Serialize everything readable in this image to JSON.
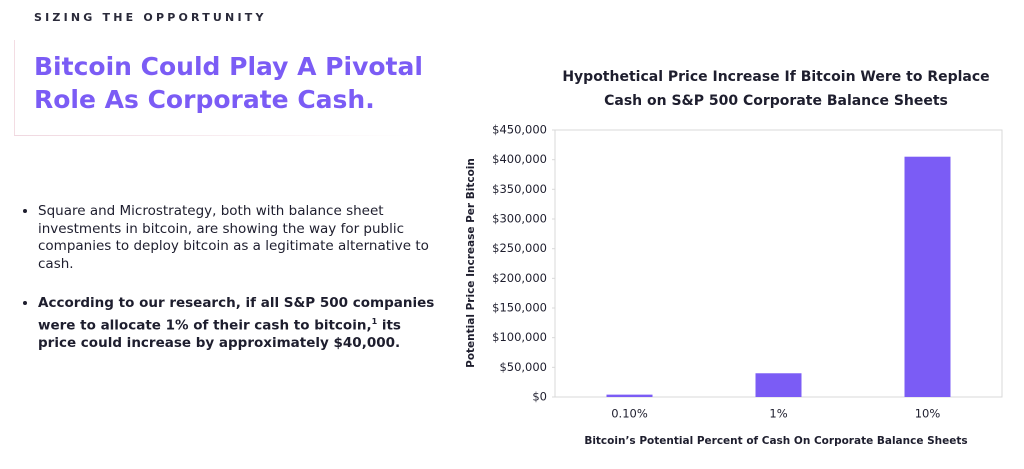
{
  "header": {
    "eyebrow": "SIZING THE OPPORTUNITY",
    "title_lines": [
      "Bitcoin Could Play A Pivotal",
      "Role As Corporate Cash."
    ]
  },
  "bullets": [
    {
      "text": "Square and Microstrategy, both with balance sheet investments in bitcoin, are showing the way for public companies to deploy bitcoin as a legitimate alternative to cash."
    },
    {
      "text": "According to our research, if all S&P 500 companies were to allocate 1% of their cash to bitcoin,",
      "footnote": "1",
      "text_after": " its price could increase by approximately $40,000."
    }
  ],
  "chart_data": {
    "type": "bar",
    "title": [
      "Hypothetical Price Increase If Bitcoin Were to Replace",
      "Cash on S&P 500 Corporate Balance Sheets"
    ],
    "x_label": "Bitcoin’s Potential Percent of Cash On Corporate Balance Sheets",
    "y_label": "Potential Price Increase Per Bitcoin",
    "categories": [
      "0.10%",
      "1%",
      "10%"
    ],
    "values": [
      4000,
      40000,
      405000
    ],
    "color": "#7b5cf5",
    "ylim": [
      0,
      450000
    ],
    "yticks": [
      {
        "value": 0,
        "label": "$0"
      },
      {
        "value": 50000,
        "label": "$50,000"
      },
      {
        "value": 100000,
        "label": "$100,000"
      },
      {
        "value": 150000,
        "label": "$150,000"
      },
      {
        "value": 200000,
        "label": "$200,000"
      },
      {
        "value": 250000,
        "label": "$250,000"
      },
      {
        "value": 300000,
        "label": "$300,000"
      },
      {
        "value": 350000,
        "label": "$350,000"
      },
      {
        "value": 400000,
        "label": "$400,000"
      },
      {
        "value": 450000,
        "label": "$450,000"
      }
    ],
    "grid": false
  }
}
